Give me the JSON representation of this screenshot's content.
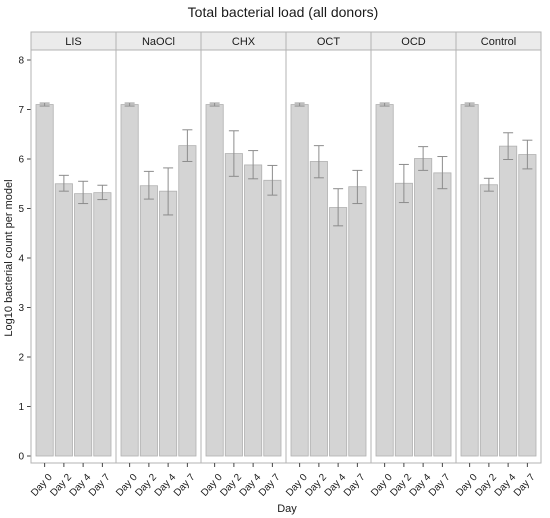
{
  "chart_data": {
    "type": "bar",
    "title": "Total bacterial load (all donors)",
    "xlabel": "Day",
    "ylabel": "Log10 bacterial count per model",
    "ylim": [
      0,
      8
    ],
    "yticks": [
      0,
      1,
      2,
      3,
      4,
      5,
      6,
      7,
      8
    ],
    "categories": [
      "Day 0",
      "Day 2",
      "Day 4",
      "Day 7"
    ],
    "grid": false,
    "legend": "none",
    "colors": {
      "bar_fill": "#d4d4d4",
      "bar_stroke": "#b0b0b0",
      "strip_fill": "#ebebeb",
      "panel_border": "#b3b3b3",
      "error": "#8c8c8c"
    },
    "panels": [
      {
        "label": "LIS",
        "values": [
          7.1,
          5.5,
          5.3,
          5.32
        ],
        "error_low": [
          7.07,
          5.35,
          5.1,
          5.18
        ],
        "error_high": [
          7.13,
          5.67,
          5.55,
          5.47
        ]
      },
      {
        "label": "NaOCl",
        "values": [
          7.1,
          5.46,
          5.35,
          6.27
        ],
        "error_low": [
          7.07,
          5.19,
          4.87,
          5.95
        ],
        "error_high": [
          7.13,
          5.75,
          5.82,
          6.59
        ]
      },
      {
        "label": "CHX",
        "values": [
          7.1,
          6.11,
          5.88,
          5.57
        ],
        "error_low": [
          7.07,
          5.65,
          5.6,
          5.27
        ],
        "error_high": [
          7.13,
          6.57,
          6.17,
          5.87
        ]
      },
      {
        "label": "OCT",
        "values": [
          7.1,
          5.95,
          5.02,
          5.44
        ],
        "error_low": [
          7.07,
          5.62,
          4.65,
          5.1
        ],
        "error_high": [
          7.13,
          6.27,
          5.4,
          5.77
        ]
      },
      {
        "label": "OCD",
        "values": [
          7.1,
          5.51,
          6.01,
          5.72
        ],
        "error_low": [
          7.07,
          5.12,
          5.77,
          5.4
        ],
        "error_high": [
          7.13,
          5.89,
          6.25,
          6.05
        ]
      },
      {
        "label": "Control",
        "values": [
          7.1,
          5.48,
          6.26,
          6.09
        ],
        "error_low": [
          7.07,
          5.35,
          5.99,
          5.8
        ],
        "error_high": [
          7.13,
          5.61,
          6.53,
          6.38
        ]
      }
    ]
  }
}
